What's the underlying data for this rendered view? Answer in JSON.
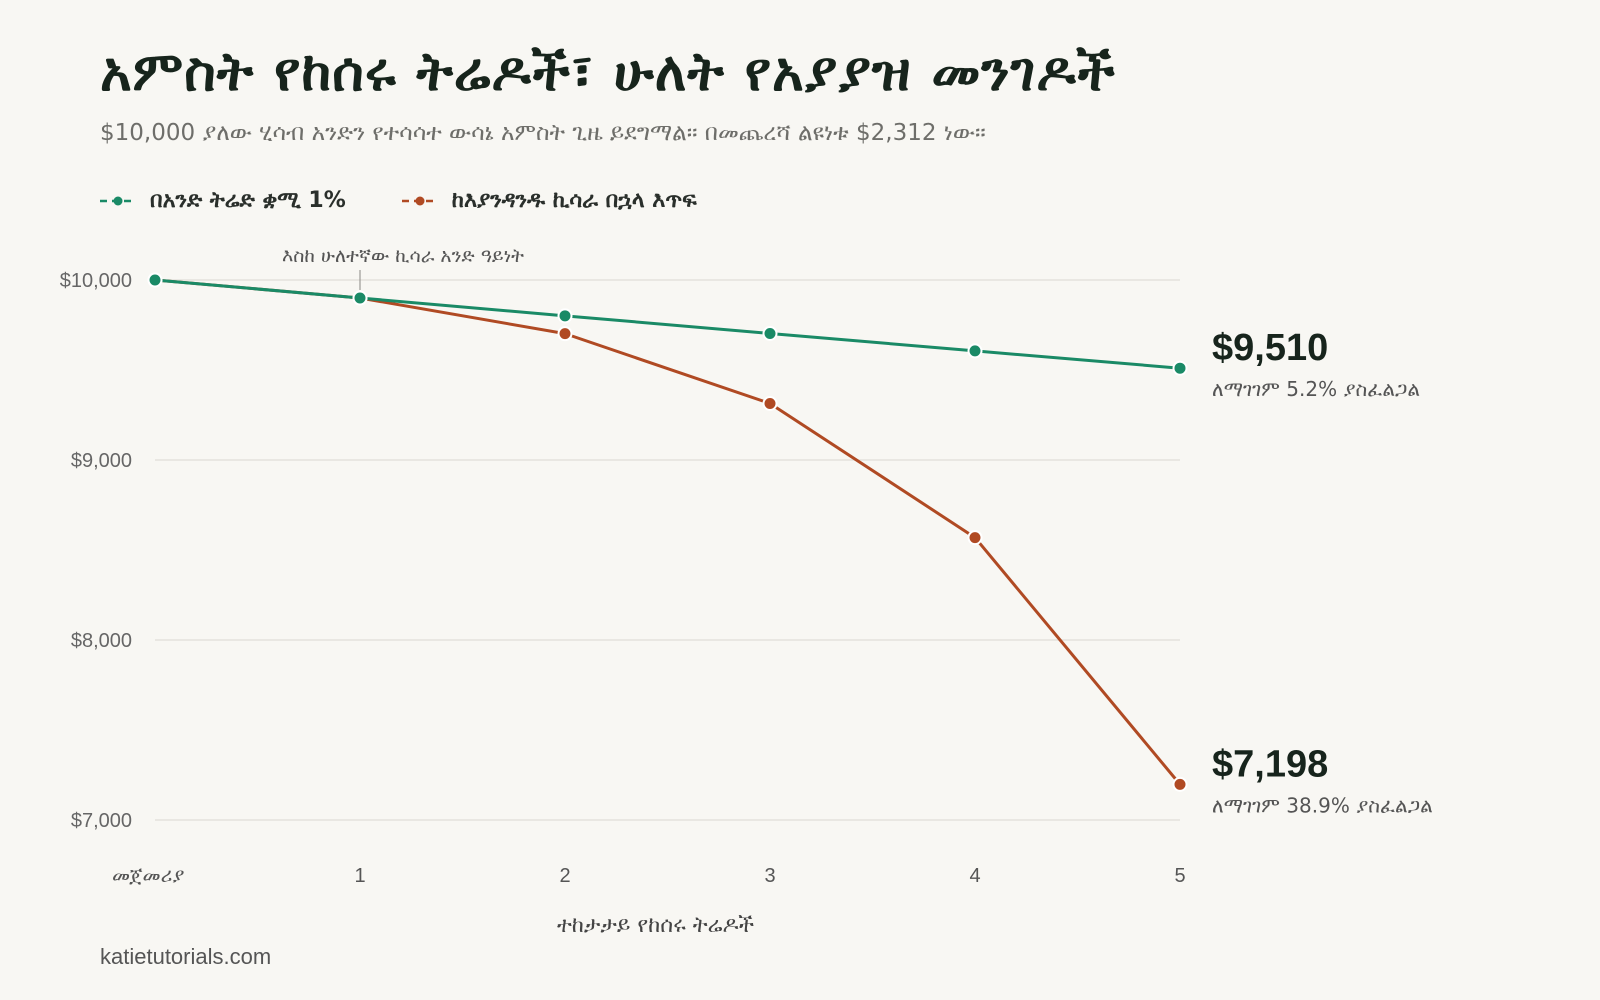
{
  "title": "አምስት የከሰሩ ትሬዶች፣ ሁለት የአያያዝ መንገዶች",
  "subtitle": "$10,000 ያለው ሂሳብ አንድን የተሳሳተ ውሳኔ አምስት ጊዜ ይደግማል። በመጨረሻ ልዩነቱ $2,312 ነው።",
  "source": "katietutorials.com",
  "colors": {
    "green": "#1a8a66",
    "orange": "#b04a23",
    "grid": "#e4e2dc",
    "background": "#f8f7f3"
  },
  "chart_data": {
    "type": "line",
    "x": [
      0,
      1,
      2,
      3,
      4,
      5
    ],
    "x_tick_labels": [
      "መጀመሪያ",
      "1",
      "2",
      "3",
      "4",
      "5"
    ],
    "xlabel": "ተከታታይ የከሰሩ ትሬዶች",
    "ylabel": "",
    "ylim": [
      7000,
      10000
    ],
    "y_ticks": [
      10000,
      9000,
      8000,
      7000
    ],
    "y_tick_labels": [
      "$10,000",
      "$9,000",
      "$8,000",
      "$7,000"
    ],
    "grid": true,
    "legend_position": "top-left",
    "series": [
      {
        "name": "በአንድ ትሬድ ቋሚ 1%",
        "color": "#1a8a66",
        "values": [
          10000,
          9900,
          9801,
          9703,
          9606,
          9510
        ],
        "end_label": "$9,510",
        "end_note": "ለማገገም 5.2% ያስፈልጋል"
      },
      {
        "name": "ከእያንዳንዱ ኪሳራ በኋላ እጥፍ",
        "color": "#b04a23",
        "values": [
          10000,
          9900,
          9702,
          9314,
          8569,
          7198
        ],
        "end_label": "$7,198",
        "end_note": "ለማገገም 38.9% ያስፈልጋል"
      }
    ],
    "annotations": [
      {
        "text": "እስከ ሁለተኛው ኪሳራ አንድ ዓይነት",
        "x": 1
      }
    ]
  }
}
